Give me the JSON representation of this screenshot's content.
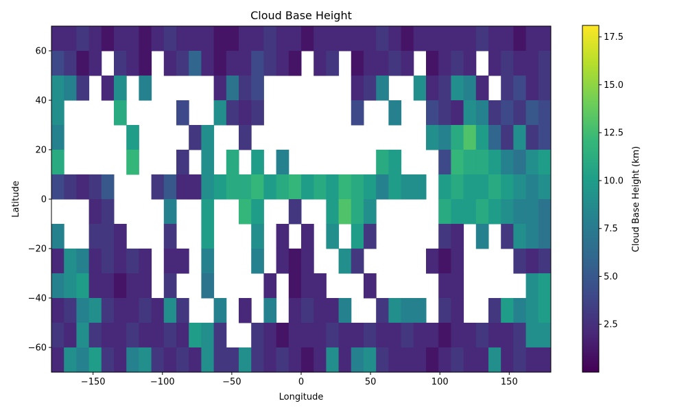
{
  "chart_data": {
    "type": "heatmap",
    "title": "Cloud Base Height",
    "xlabel": "Longitude",
    "ylabel": "Latitude",
    "xlim": [
      -180,
      180
    ],
    "ylim": [
      -70,
      70
    ],
    "xticks": [
      -150,
      -100,
      -50,
      0,
      50,
      100,
      150
    ],
    "yticks": [
      -60,
      -40,
      -20,
      0,
      20,
      40,
      60
    ],
    "xtick_labels": [
      "−150",
      "−100",
      "−50",
      "0",
      "50",
      "100",
      "150"
    ],
    "ytick_labels": [
      "−60",
      "−40",
      "−20",
      "0",
      "20",
      "40",
      "60"
    ],
    "grid": false,
    "colormap": "viridis",
    "missing_color": "#ffffff",
    "colorbar": {
      "label": "Cloud Base Height (km)",
      "range": [
        0,
        18.1
      ],
      "ticks": [
        2.5,
        5.0,
        7.5,
        10.0,
        12.5,
        15.0,
        17.5
      ],
      "tick_labels": [
        "2.5",
        "5.0",
        "7.5",
        "10.0",
        "12.5",
        "15.0",
        "17.5"
      ],
      "colors": [
        "#440154",
        "#482878",
        "#3e4989",
        "#31688e",
        "#26828e",
        "#1f9e89",
        "#35b779",
        "#6ece58",
        "#b5de2b",
        "#fde725"
      ]
    },
    "values_km": [
      [
        2,
        2,
        3,
        2,
        1,
        2,
        2,
        1,
        2,
        3,
        2,
        2,
        2,
        1,
        1,
        2,
        2,
        3,
        2,
        2,
        1,
        2,
        2,
        2,
        2,
        2,
        3,
        2,
        1,
        2,
        2,
        2,
        2,
        2,
        3,
        2,
        2,
        1,
        2,
        2
      ],
      [
        4,
        3,
        1,
        2,
        null,
        3,
        2,
        1,
        null,
        2,
        3,
        6,
        2,
        1,
        2,
        2,
        4,
        3,
        2,
        1,
        null,
        2,
        3,
        null,
        1,
        2,
        2,
        3,
        2,
        null,
        1,
        2,
        3,
        2,
        null,
        2,
        3,
        2,
        2,
        3
      ],
      [
        9,
        8,
        3,
        null,
        2,
        9,
        null,
        8,
        null,
        null,
        null,
        null,
        null,
        2,
        7,
        3,
        4,
        null,
        null,
        null,
        null,
        null,
        null,
        null,
        2,
        3,
        8,
        null,
        null,
        9,
        2,
        3,
        9,
        8,
        2,
        null,
        3,
        4,
        2,
        3
      ],
      [
        9,
        null,
        null,
        null,
        null,
        11,
        null,
        null,
        null,
        null,
        4,
        null,
        null,
        9,
        3,
        2,
        3,
        null,
        null,
        null,
        null,
        null,
        null,
        null,
        4,
        null,
        null,
        8,
        null,
        null,
        4,
        3,
        2,
        9,
        8,
        3,
        4,
        3,
        5,
        4
      ],
      [
        8,
        null,
        null,
        null,
        null,
        null,
        10,
        null,
        null,
        null,
        null,
        3,
        9,
        null,
        null,
        3,
        null,
        null,
        null,
        null,
        null,
        null,
        null,
        null,
        null,
        null,
        null,
        null,
        null,
        null,
        9,
        8,
        11,
        13,
        10,
        6,
        3,
        9,
        3,
        4
      ],
      [
        11,
        null,
        null,
        null,
        null,
        null,
        12,
        null,
        null,
        null,
        3,
        null,
        9,
        null,
        11,
        null,
        10,
        null,
        8,
        null,
        null,
        null,
        null,
        null,
        null,
        null,
        11,
        10,
        null,
        null,
        null,
        4,
        12,
        11,
        11,
        10,
        8,
        7,
        9,
        10
      ],
      [
        4,
        3,
        2,
        3,
        5,
        null,
        null,
        null,
        3,
        5,
        2,
        2,
        9,
        10,
        11,
        11,
        12,
        10,
        11,
        12,
        10,
        11,
        10,
        12,
        11,
        10,
        8,
        10,
        9,
        9,
        null,
        10,
        11,
        10,
        10,
        11,
        10,
        9,
        8,
        9
      ],
      [
        null,
        null,
        null,
        2,
        3,
        null,
        null,
        null,
        null,
        8,
        null,
        null,
        10,
        null,
        null,
        12,
        10,
        null,
        null,
        3,
        null,
        null,
        10,
        13,
        11,
        9,
        null,
        null,
        null,
        null,
        null,
        11,
        10,
        10,
        11,
        10,
        9,
        8,
        8,
        7
      ],
      [
        8,
        null,
        null,
        3,
        3,
        2,
        null,
        null,
        null,
        3,
        null,
        null,
        10,
        null,
        null,
        null,
        9,
        null,
        2,
        null,
        2,
        null,
        9,
        null,
        10,
        3,
        null,
        null,
        null,
        null,
        null,
        3,
        2,
        null,
        8,
        null,
        3,
        9,
        8,
        7
      ],
      [
        2,
        9,
        8,
        2,
        3,
        2,
        3,
        2,
        null,
        2,
        2,
        null,
        8,
        null,
        null,
        null,
        8,
        null,
        2,
        1,
        2,
        null,
        null,
        9,
        3,
        null,
        null,
        null,
        null,
        null,
        2,
        1,
        2,
        null,
        null,
        null,
        null,
        3,
        2,
        3
      ],
      [
        8,
        9,
        10,
        2,
        2,
        1,
        2,
        2,
        null,
        3,
        null,
        null,
        7,
        null,
        null,
        null,
        null,
        2,
        null,
        1,
        2,
        2,
        null,
        null,
        null,
        2,
        null,
        null,
        null,
        null,
        null,
        2,
        2,
        null,
        null,
        null,
        null,
        null,
        9,
        10
      ],
      [
        2,
        3,
        8,
        9,
        3,
        2,
        2,
        3,
        2,
        9,
        3,
        null,
        null,
        8,
        null,
        2,
        null,
        8,
        null,
        2,
        3,
        2,
        2,
        8,
        null,
        null,
        3,
        9,
        8,
        8,
        null,
        3,
        2,
        null,
        null,
        3,
        10,
        8,
        9,
        10
      ],
      [
        3,
        2,
        9,
        3,
        2,
        2,
        3,
        2,
        2,
        3,
        2,
        10,
        9,
        3,
        null,
        null,
        3,
        2,
        1,
        2,
        2,
        2,
        3,
        2,
        2,
        3,
        2,
        2,
        3,
        2,
        2,
        1,
        2,
        2,
        3,
        2,
        2,
        3,
        9,
        9
      ],
      [
        2,
        9,
        8,
        10,
        3,
        2,
        8,
        9,
        3,
        2,
        3,
        2,
        9,
        3,
        3,
        9,
        3,
        2,
        3,
        2,
        1,
        2,
        9,
        2,
        8,
        9,
        3,
        2,
        2,
        2,
        1,
        2,
        3,
        2,
        2,
        9,
        2,
        3,
        2,
        2
      ]
    ]
  }
}
